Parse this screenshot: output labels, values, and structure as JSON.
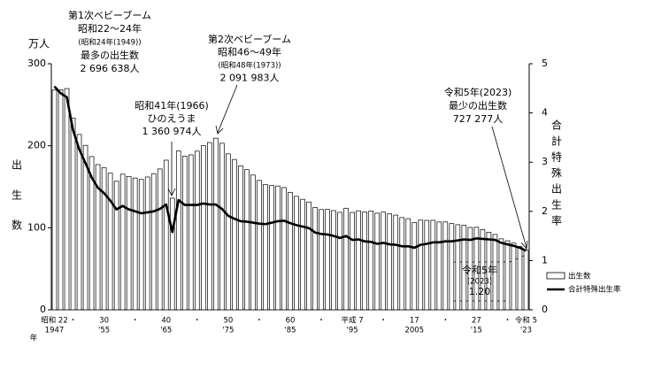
{
  "chart_data": {
    "type": "bar-line",
    "y_unit": "万人",
    "y_label": "出生数",
    "y2_label": "合計特殊出生率",
    "x_unit": "年",
    "era_labels": [
      "昭和 22",
      null,
      null,
      "・",
      null,
      null,
      null,
      null,
      "30",
      null,
      null,
      null,
      null,
      "・",
      null,
      null,
      null,
      null,
      "40",
      null,
      null,
      null,
      null,
      "・",
      null,
      null,
      null,
      null,
      "50",
      null,
      null,
      null,
      null,
      "・",
      null,
      null,
      null,
      null,
      "60",
      null,
      null,
      null,
      null,
      "・",
      null,
      null,
      null,
      null,
      "平成 7",
      null,
      null,
      null,
      null,
      "・",
      null,
      null,
      null,
      null,
      "17",
      null,
      null,
      null,
      null,
      "・",
      null,
      null,
      null,
      null,
      "27",
      null,
      null,
      null,
      null,
      "・",
      null,
      null,
      "令和 5"
    ],
    "categories": [
      "1947",
      null,
      null,
      null,
      null,
      null,
      null,
      null,
      "'55",
      null,
      null,
      null,
      null,
      null,
      null,
      null,
      null,
      null,
      "'65",
      null,
      null,
      null,
      null,
      null,
      null,
      null,
      null,
      null,
      "'75",
      null,
      null,
      null,
      null,
      null,
      null,
      null,
      null,
      null,
      "'85",
      null,
      null,
      null,
      null,
      null,
      null,
      null,
      null,
      null,
      "'95",
      null,
      null,
      null,
      null,
      null,
      null,
      null,
      null,
      null,
      "2005",
      null,
      null,
      null,
      null,
      null,
      null,
      null,
      null,
      null,
      "'15",
      null,
      null,
      null,
      null,
      null,
      null,
      null,
      "'23"
    ],
    "series": [
      {
        "name": "出生数",
        "color": "#ffffff",
        "values": [
          267.9,
          268.2,
          269.7,
          233.8,
          213.8,
          200.5,
          186.8,
          177.0,
          173.1,
          166.5,
          156.7,
          165.3,
          162.6,
          160.6,
          158.9,
          161.9,
          166.0,
          171.7,
          182.4,
          136.1,
          193.6,
          187.2,
          188.9,
          193.4,
          200.1,
          203.9,
          209.2,
          203.0,
          190.1,
          183.3,
          175.5,
          170.9,
          164.3,
          157.7,
          152.9,
          151.5,
          150.9,
          149.0,
          143.2,
          138.3,
          134.7,
          131.4,
          124.7,
          122.2,
          122.3,
          120.9,
          118.8,
          123.8,
          118.7,
          120.7,
          119.2,
          120.3,
          117.8,
          119.1,
          117.1,
          115.4,
          112.4,
          111.1,
          106.3,
          109.3,
          109.0,
          109.1,
          107.0,
          107.1,
          105.1,
          103.7,
          103.0,
          100.4,
          100.6,
          97.7,
          94.6,
          91.8,
          86.5,
          84.1,
          81.2,
          77.1,
          72.7
        ]
      },
      {
        "name": "合計特殊出生率",
        "color": "#000000",
        "axis": "y2",
        "values": [
          4.54,
          4.4,
          4.32,
          3.65,
          3.26,
          2.98,
          2.69,
          2.48,
          2.37,
          2.22,
          2.04,
          2.11,
          2.04,
          2.0,
          1.96,
          1.98,
          2.0,
          2.05,
          2.14,
          1.58,
          2.23,
          2.13,
          2.13,
          2.13,
          2.16,
          2.14,
          2.14,
          2.05,
          1.91,
          1.85,
          1.8,
          1.79,
          1.77,
          1.75,
          1.74,
          1.77,
          1.8,
          1.81,
          1.76,
          1.72,
          1.69,
          1.66,
          1.57,
          1.54,
          1.53,
          1.5,
          1.46,
          1.5,
          1.42,
          1.43,
          1.39,
          1.38,
          1.34,
          1.36,
          1.33,
          1.32,
          1.29,
          1.29,
          1.26,
          1.32,
          1.34,
          1.37,
          1.37,
          1.39,
          1.39,
          1.41,
          1.43,
          1.42,
          1.45,
          1.44,
          1.43,
          1.42,
          1.36,
          1.33,
          1.3,
          1.26,
          1.2
        ]
      }
    ],
    "ylim": [
      0,
      300
    ],
    "yticks": [
      0,
      100,
      200,
      300
    ],
    "y2lim": [
      0,
      5
    ],
    "y2ticks": [
      0,
      1,
      2,
      3,
      4,
      5
    ],
    "annotations": [
      {
        "lines": [
          "第1次ベビーブーム",
          "昭和22～24年",
          "(昭和24年(1949))",
          "最多の出生数",
          "2 696 638人"
        ]
      },
      {
        "lines": [
          "昭和41年(1966)",
          "ひのえうま",
          "1 360 974人"
        ]
      },
      {
        "lines": [
          "第2次ベビーブーム",
          "昭和46～49年",
          "(昭和48年(1973))",
          "2 091 983人"
        ]
      },
      {
        "lines": [
          "令和5年(2023)",
          "最少の出生数",
          "727 277人"
        ]
      },
      {
        "lines": [
          "令和5年",
          "(2023)",
          "1.20"
        ]
      }
    ]
  }
}
